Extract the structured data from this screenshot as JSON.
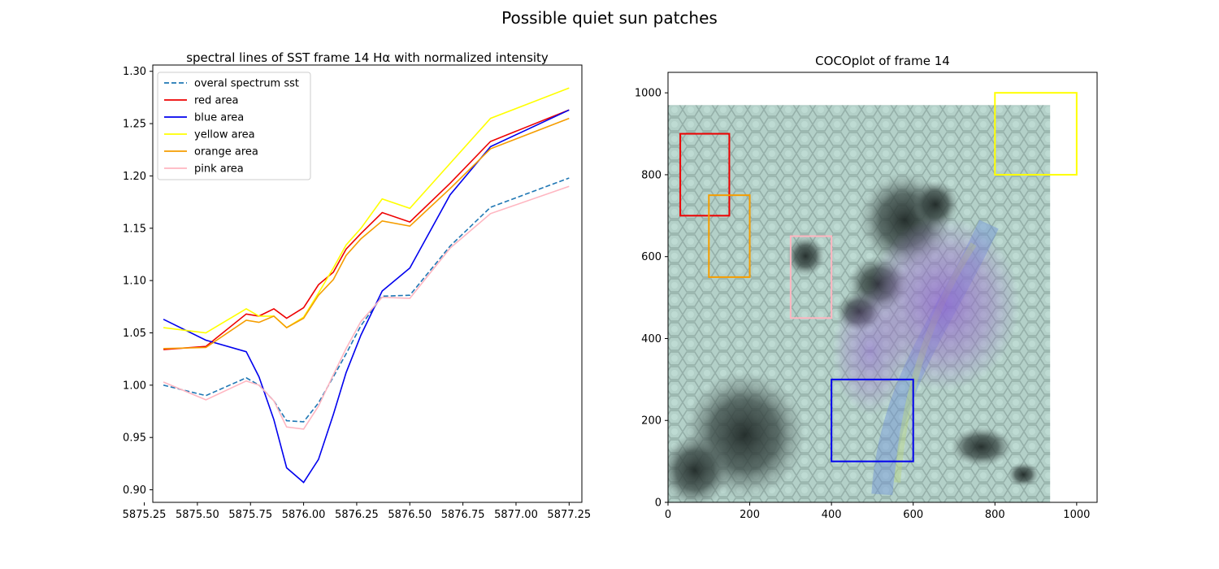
{
  "figure": {
    "suptitle": "Possible quiet sun patches"
  },
  "chart_data": [
    {
      "type": "line",
      "title": "spectral lines of SST frame 14 Hα with normalized intensity",
      "xlabel": "",
      "ylabel": "",
      "xlim": [
        5875.29,
        5877.31
      ],
      "ylim": [
        0.888,
        1.306
      ],
      "xticks": [
        5875.25,
        5875.5,
        5875.75,
        5876.0,
        5876.25,
        5876.5,
        5876.75,
        5877.0,
        5877.25
      ],
      "xtick_labels": [
        "5875.25",
        "5875.50",
        "5875.75",
        "5876.00",
        "5876.25",
        "5876.50",
        "5876.75",
        "5877.00",
        "5877.25"
      ],
      "yticks": [
        0.9,
        0.95,
        1.0,
        1.05,
        1.1,
        1.15,
        1.2,
        1.25,
        1.3
      ],
      "ytick_labels": [
        "0.90",
        "0.95",
        "1.00",
        "1.05",
        "1.10",
        "1.15",
        "1.20",
        "1.25",
        "1.30"
      ],
      "grid": false,
      "legend_position": "top-left",
      "x": [
        5875.34,
        5875.54,
        5875.73,
        5875.79,
        5875.86,
        5875.92,
        5876.0,
        5876.07,
        5876.14,
        5876.2,
        5876.27,
        5876.37,
        5876.5,
        5876.69,
        5876.88,
        5877.25
      ],
      "series": [
        {
          "name": "overal spectrum sst",
          "color": "#1f77b4",
          "dashed": true,
          "values": [
            1.0,
            0.99,
            1.007,
            1.0,
            0.985,
            0.966,
            0.965,
            0.983,
            1.008,
            1.03,
            1.057,
            1.085,
            1.086,
            1.133,
            1.17,
            1.198
          ]
        },
        {
          "name": "red area",
          "color": "#ee0000",
          "dashed": false,
          "values": [
            1.034,
            1.037,
            1.068,
            1.066,
            1.073,
            1.064,
            1.074,
            1.096,
            1.108,
            1.13,
            1.145,
            1.165,
            1.156,
            1.193,
            1.233,
            1.263
          ]
        },
        {
          "name": "blue area",
          "color": "#0000ee",
          "dashed": false,
          "values": [
            1.063,
            1.043,
            1.032,
            1.008,
            0.967,
            0.921,
            0.907,
            0.929,
            0.972,
            1.012,
            1.048,
            1.09,
            1.112,
            1.182,
            1.228,
            1.263
          ]
        },
        {
          "name": "yellow area",
          "color": "#ffff00",
          "dashed": false,
          "values": [
            1.055,
            1.05,
            1.073,
            1.066,
            1.066,
            1.055,
            1.065,
            1.088,
            1.112,
            1.134,
            1.15,
            1.178,
            1.169,
            1.212,
            1.255,
            1.284
          ]
        },
        {
          "name": "orange area",
          "color": "#f59d00",
          "dashed": false,
          "values": [
            1.035,
            1.036,
            1.062,
            1.06,
            1.066,
            1.055,
            1.064,
            1.086,
            1.101,
            1.124,
            1.14,
            1.157,
            1.152,
            1.188,
            1.226,
            1.255
          ]
        },
        {
          "name": "pink area",
          "color": "#ffb6c1",
          "dashed": false,
          "values": [
            1.003,
            0.986,
            1.004,
            1.0,
            0.985,
            0.96,
            0.958,
            0.98,
            1.01,
            1.035,
            1.061,
            1.084,
            1.083,
            1.131,
            1.164,
            1.19
          ]
        }
      ]
    },
    {
      "type": "image",
      "title": "COCOplot of frame 14",
      "xlim": [
        0,
        1050
      ],
      "ylim": [
        0,
        1050
      ],
      "xticks": [
        0,
        200,
        400,
        600,
        800,
        1000
      ],
      "xtick_labels": [
        "0",
        "200",
        "400",
        "600",
        "800",
        "1000"
      ],
      "yticks": [
        0,
        200,
        400,
        600,
        800,
        1000
      ],
      "ytick_labels": [
        "0",
        "200",
        "400",
        "600",
        "800",
        "1000"
      ],
      "image_extent": [
        0,
        935,
        0,
        970
      ],
      "image_colors": {
        "base": "#a9c7bf",
        "dark": "#2f3b38",
        "purple": "#9a72c8",
        "blue": "#6f92d8",
        "green": "#b8d48a"
      },
      "rectangles": [
        {
          "name": "red",
          "color": "#ee0000",
          "x": [
            30,
            150
          ],
          "y": [
            700,
            900
          ]
        },
        {
          "name": "orange",
          "color": "#f59d00",
          "x": [
            100,
            200
          ],
          "y": [
            550,
            750
          ]
        },
        {
          "name": "pink",
          "color": "#ffb6c1",
          "x": [
            300,
            400
          ],
          "y": [
            450,
            650
          ]
        },
        {
          "name": "blue",
          "color": "#0000ee",
          "x": [
            400,
            600
          ],
          "y": [
            100,
            300
          ]
        },
        {
          "name": "yellow",
          "color": "#ffff00",
          "x": [
            800,
            1000
          ],
          "y": [
            800,
            1000
          ]
        }
      ]
    }
  ]
}
